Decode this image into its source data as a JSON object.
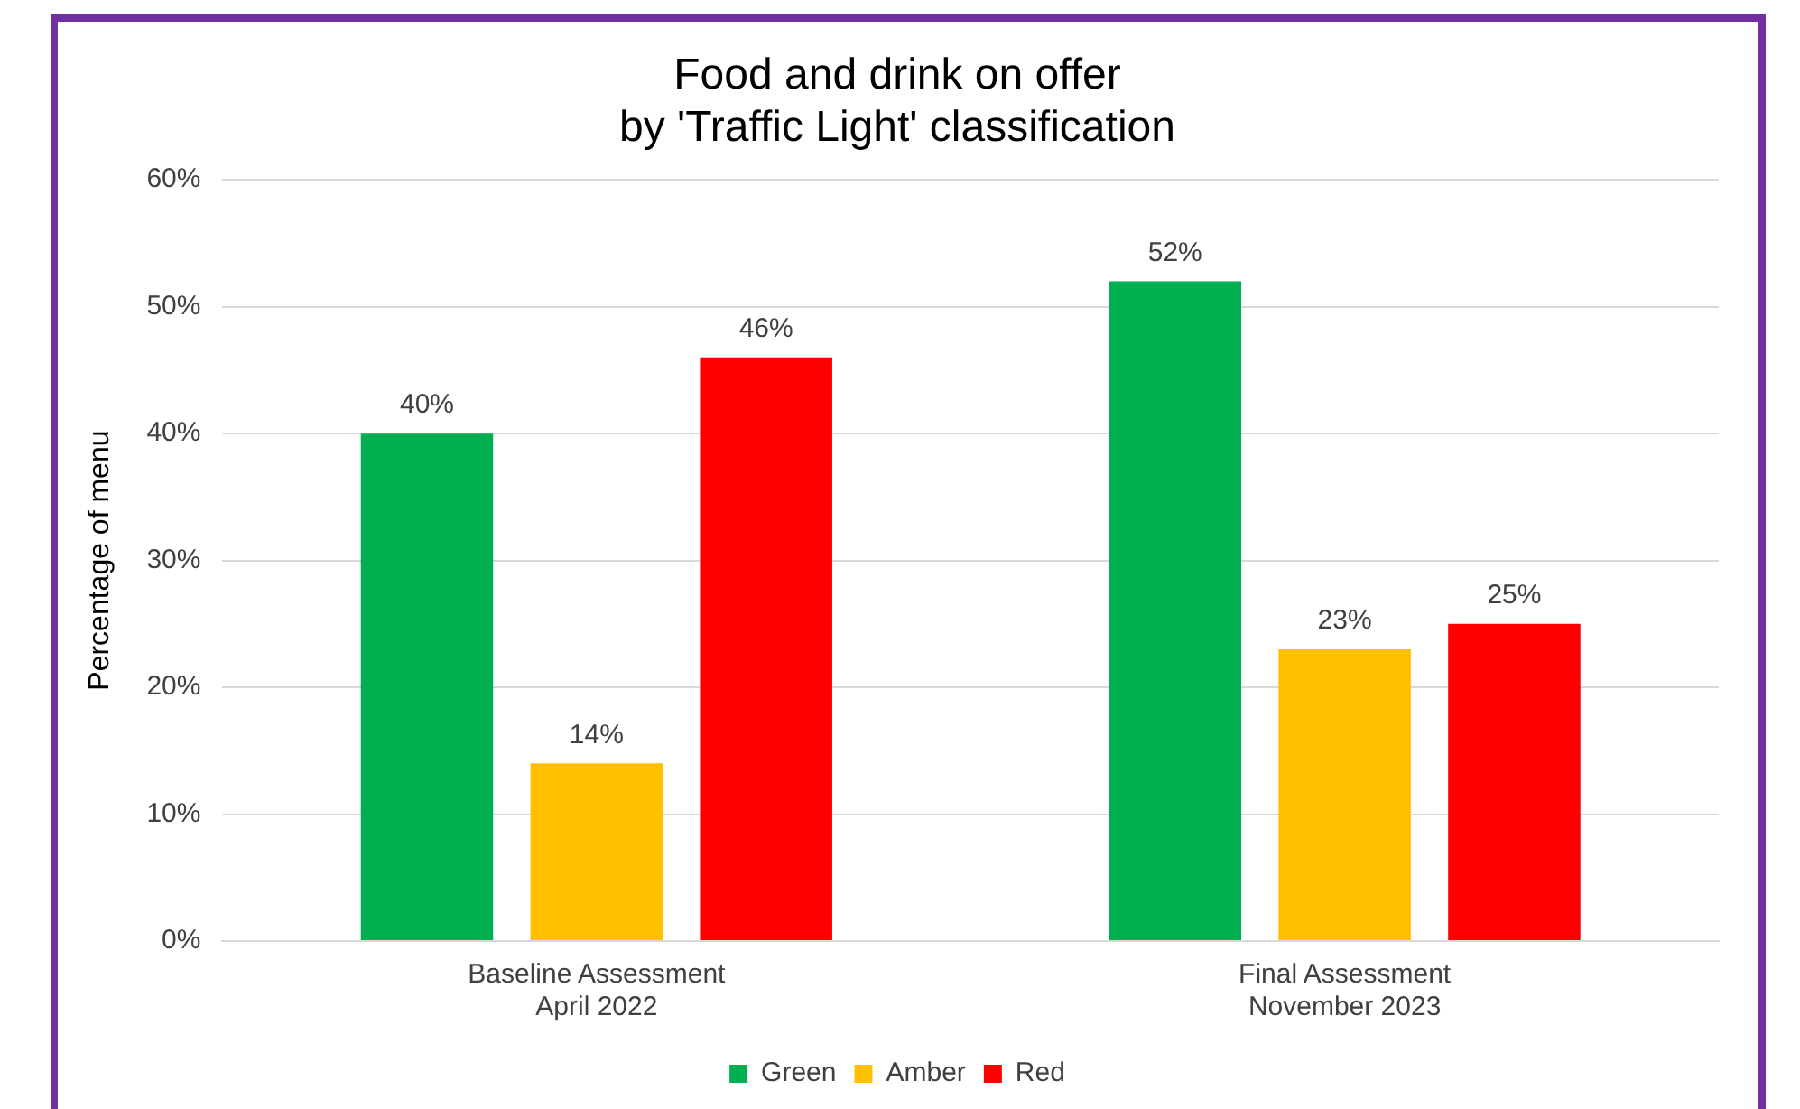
{
  "chart_data": {
    "type": "bar",
    "title": "Food and drink on offer\nby 'Traffic Light' classification",
    "ylabel": "Percentage of menu",
    "categories": [
      "Baseline Assessment\nApril 2022",
      "Final Assessment\nNovember 2023"
    ],
    "series": [
      {
        "name": "Green",
        "color": "#00b050",
        "values": [
          40,
          52
        ],
        "value_labels": [
          "40%",
          "52%"
        ]
      },
      {
        "name": "Amber",
        "color": "#ffc000",
        "values": [
          14,
          23
        ],
        "value_labels": [
          "14%",
          "23%"
        ]
      },
      {
        "name": "Red",
        "color": "#ff0000",
        "values": [
          46,
          25
        ],
        "value_labels": [
          "46%",
          "25%"
        ]
      }
    ],
    "ylim": [
      0,
      60
    ],
    "yticks": [
      {
        "value": 0,
        "label": "0%"
      },
      {
        "value": 10,
        "label": "10%"
      },
      {
        "value": 20,
        "label": "20%"
      },
      {
        "value": 30,
        "label": "30%"
      },
      {
        "value": 40,
        "label": "40%"
      },
      {
        "value": 50,
        "label": "50%"
      },
      {
        "value": 60,
        "label": "60%"
      }
    ],
    "grid": "y",
    "legend": "bottom"
  }
}
